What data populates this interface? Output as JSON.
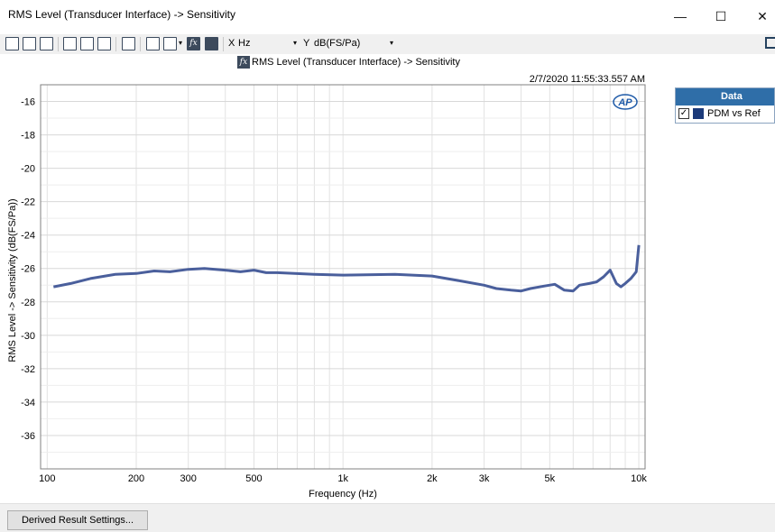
{
  "window": {
    "title": "RMS Level (Transducer Interface) -> Sensitivity",
    "controls": {
      "minimize": "—",
      "maximize": "☐",
      "close": "✕"
    }
  },
  "toolbar": {
    "x_label": "X",
    "x_unit": "Hz",
    "y_label": "Y",
    "y_unit": "dB(FS/Pa)",
    "fx_label": "fx"
  },
  "graph": {
    "title": "RMS Level (Transducer Interface) -> Sensitivity",
    "timestamp": "2/7/2020 11:55:33.557 AM",
    "logo": "AP"
  },
  "legend": {
    "header": "Data",
    "items": [
      {
        "label": "PDM vs Ref",
        "checked": true,
        "color": "#1b3a7a"
      }
    ]
  },
  "bottom": {
    "button_label": "Derived Result Settings..."
  },
  "chart_data": {
    "type": "line",
    "title": "RMS Level (Transducer Interface) -> Sensitivity",
    "xlabel": "Frequency (Hz)",
    "ylabel": "RMS Level -> Sensitivity (dB(FS/Pa))",
    "xscale": "log",
    "xlim": [
      95,
      10500
    ],
    "ylim": [
      -38,
      -15
    ],
    "grid": true,
    "legend_position": "right",
    "x_ticks": [
      {
        "v": 100,
        "label": "100"
      },
      {
        "v": 200,
        "label": "200"
      },
      {
        "v": 300,
        "label": "300"
      },
      {
        "v": 500,
        "label": "500"
      },
      {
        "v": 1000,
        "label": "1k"
      },
      {
        "v": 2000,
        "label": "2k"
      },
      {
        "v": 3000,
        "label": "3k"
      },
      {
        "v": 5000,
        "label": "5k"
      },
      {
        "v": 10000,
        "label": "10k"
      }
    ],
    "y_ticks": [
      -16,
      -18,
      -20,
      -22,
      -24,
      -26,
      -28,
      -30,
      -32,
      -34,
      -36
    ],
    "series": [
      {
        "name": "PDM vs Ref",
        "color": "#4a5f9c",
        "x": [
          105,
          120,
          140,
          170,
          200,
          230,
          260,
          300,
          340,
          400,
          450,
          500,
          550,
          600,
          800,
          1000,
          1500,
          2000,
          2500,
          3000,
          3300,
          3700,
          4000,
          4300,
          4800,
          5200,
          5600,
          6000,
          6300,
          6800,
          7200,
          7600,
          8000,
          8400,
          8700,
          9000,
          9400,
          9800,
          10000
        ],
        "y": [
          -27.1,
          -26.9,
          -26.6,
          -26.35,
          -26.3,
          -26.15,
          -26.2,
          -26.05,
          -26.0,
          -26.1,
          -26.2,
          -26.1,
          -26.25,
          -26.25,
          -26.35,
          -26.4,
          -26.35,
          -26.45,
          -26.75,
          -27.0,
          -27.2,
          -27.3,
          -27.35,
          -27.2,
          -27.05,
          -26.95,
          -27.3,
          -27.35,
          -27.0,
          -26.9,
          -26.8,
          -26.5,
          -26.1,
          -26.9,
          -27.1,
          -26.9,
          -26.6,
          -26.2,
          -24.6
        ]
      }
    ]
  }
}
